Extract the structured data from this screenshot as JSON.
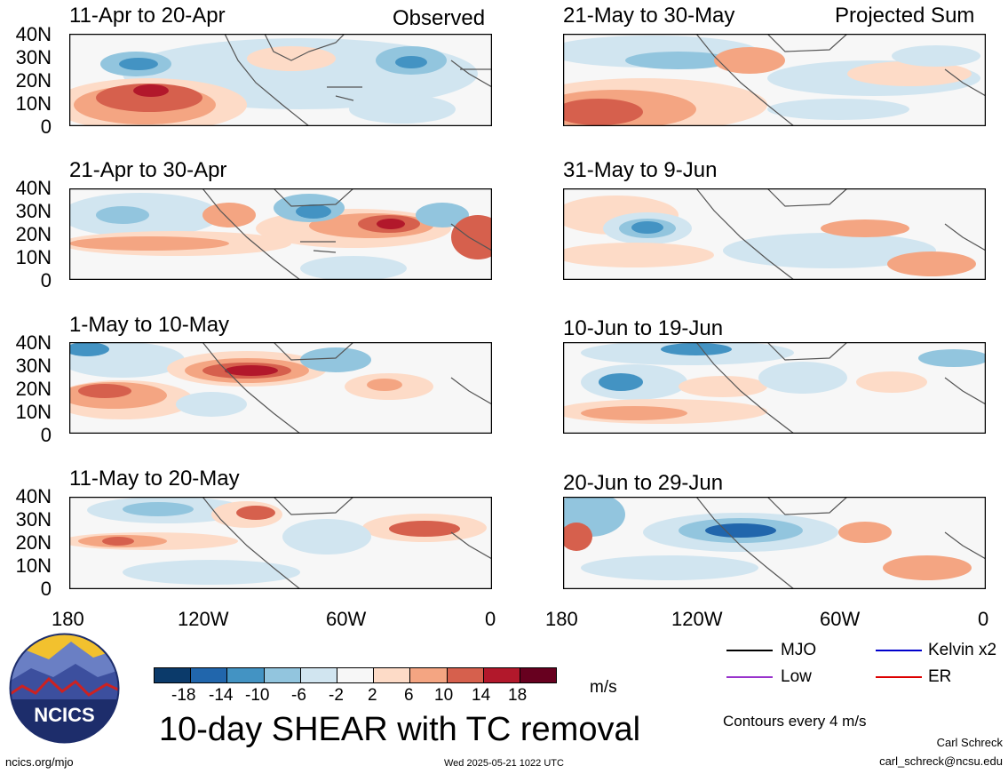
{
  "panels": [
    {
      "col": "left",
      "period": "11-Apr to 20-Apr",
      "tag": "Observed"
    },
    {
      "col": "left",
      "period": "21-Apr to 30-Apr",
      "tag": ""
    },
    {
      "col": "left",
      "period": "1-May to 10-May",
      "tag": ""
    },
    {
      "col": "left",
      "period": "11-May to 20-May",
      "tag": ""
    },
    {
      "col": "right",
      "period": "21-May to 30-May",
      "tag": "Projected Sum"
    },
    {
      "col": "right",
      "period": "31-May to 9-Jun",
      "tag": ""
    },
    {
      "col": "right",
      "period": "10-Jun to 19-Jun",
      "tag": ""
    },
    {
      "col": "right",
      "period": "20-Jun to 29-Jun",
      "tag": ""
    }
  ],
  "y_ticks": [
    "40N",
    "30N",
    "20N",
    "10N",
    "0"
  ],
  "x_ticks": [
    "180",
    "120W",
    "60W",
    "0"
  ],
  "colorbar": {
    "labels": [
      "-18",
      "-14",
      "-10",
      "-6",
      "-2",
      "2",
      "6",
      "10",
      "14",
      "18"
    ],
    "colors": [
      "#0b3a6a",
      "#2166ac",
      "#4393c3",
      "#92c5de",
      "#d1e5f0",
      "#f7f7f7",
      "#fddbc7",
      "#f4a582",
      "#d6604d",
      "#b2182b",
      "#67001f"
    ],
    "unit": "m/s"
  },
  "legend": [
    {
      "label": "MJO",
      "color": "#000000"
    },
    {
      "label": "Kelvin x2",
      "color": "#0000cc"
    },
    {
      "label": "Low",
      "color": "#9933cc"
    },
    {
      "label": "ER",
      "color": "#dd0000"
    }
  ],
  "title": "10-day SHEAR with TC removal",
  "contour_note": "Contours every 4 m/s",
  "logo_text": "NCICS",
  "footer": {
    "url": "ncics.org/mjo",
    "timestamp": "Wed 2025-05-21 1022 UTC",
    "author": "Carl Schreck",
    "email": "carl_schreck@ncsu.edu"
  }
}
